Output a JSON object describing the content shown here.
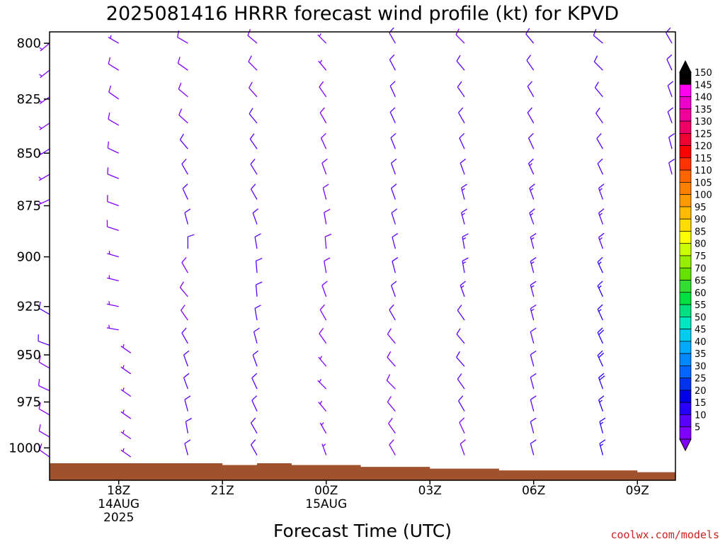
{
  "chart_data": {
    "type": "wind-barb-profile",
    "title": "2025081416 HRRR forecast wind profile (kt) for KPVD",
    "xlabel": "Forecast Time (UTC)",
    "ylabel": "",
    "credit": "coolwx.com/models",
    "x_ticks": [
      {
        "hour": 2,
        "lines": [
          "18Z",
          "14AUG",
          "2025"
        ]
      },
      {
        "hour": 5,
        "lines": [
          "21Z"
        ]
      },
      {
        "hour": 8,
        "lines": [
          "00Z",
          "15AUG"
        ]
      },
      {
        "hour": 11,
        "lines": [
          "03Z"
        ]
      },
      {
        "hour": 14,
        "lines": [
          "06Z"
        ]
      },
      {
        "hour": 17,
        "lines": [
          "09Z"
        ]
      }
    ],
    "y_ticks": [
      800,
      825,
      850,
      875,
      900,
      925,
      950,
      975,
      1000
    ],
    "ylim_hpa": [
      795,
      1018
    ],
    "xlim_hours": [
      0,
      18.1
    ],
    "colorbar": {
      "levels": [
        5,
        10,
        15,
        20,
        25,
        30,
        35,
        40,
        45,
        50,
        55,
        60,
        65,
        70,
        75,
        80,
        85,
        90,
        95,
        100,
        105,
        110,
        115,
        120,
        125,
        130,
        135,
        140,
        145,
        150
      ],
      "colors": [
        "#7f00ff",
        "#5a00ff",
        "#2800ff",
        "#0000e6",
        "#0033ee",
        "#0066ff",
        "#0088ff",
        "#00aaff",
        "#00ccee",
        "#00e6c0",
        "#00e080",
        "#00e040",
        "#33dd33",
        "#66e000",
        "#99ee00",
        "#ccff00",
        "#ffff00",
        "#ffdd00",
        "#ffbb00",
        "#ff9900",
        "#ff8000",
        "#ff6600",
        "#ff3300",
        "#ff0000",
        "#ee0033",
        "#ee0066",
        "#ee0099",
        "#ee00cc",
        "#ff00ee",
        "#000000"
      ]
    },
    "surface_pressure_hpa": [
      1008.5,
      1008.5,
      1008.5,
      1008.5,
      1008.5,
      1009.5,
      1008.5,
      1009.5,
      1009.5,
      1010.5,
      1010.5,
      1011.5,
      1011.5,
      1012.5,
      1012.5,
      1012.5,
      1012.5,
      1013.5,
      1013.5
    ],
    "series": [
      {
        "hour": 0,
        "pressures": [
          800,
          812,
          824,
          836,
          848,
          860,
          872,
          929,
          945,
          957,
          969,
          982,
          994,
          1005
        ],
        "dir": [
          230,
          232,
          235,
          236,
          238,
          240,
          245,
          300,
          290,
          300,
          295,
          300,
          300,
          305
        ],
        "spd": [
          6,
          6,
          6,
          6,
          6,
          6,
          6,
          12,
          10,
          8,
          8,
          8,
          8,
          8
        ]
      },
      {
        "hour": 2,
        "pressures": [
          800,
          812,
          825,
          837,
          850,
          862,
          875,
          887,
          900,
          912,
          925,
          937
        ],
        "dir": [
          300,
          302,
          305,
          300,
          295,
          292,
          290,
          288,
          286,
          284,
          282,
          280
        ],
        "spd": [
          7,
          8,
          9,
          9,
          9,
          8,
          8,
          8,
          7,
          7,
          6,
          6
        ]
      },
      {
        "hour": 2.35,
        "pressures": [
          949,
          960,
          972,
          984,
          995,
          1005
        ],
        "dir": [
          305,
          305,
          305,
          305,
          305,
          305
        ],
        "spd": [
          7,
          7,
          7,
          7,
          7,
          7
        ]
      },
      {
        "hour": 4,
        "pressures": [
          800,
          812,
          824,
          836,
          848,
          860,
          872,
          884,
          896,
          908,
          920,
          932,
          944,
          956,
          968,
          980,
          992,
          1004
        ],
        "dir": [
          300,
          305,
          310,
          312,
          320,
          330,
          335,
          345,
          360,
          330,
          320,
          325,
          330,
          340,
          340,
          345,
          350,
          345
        ],
        "spd": [
          8,
          8,
          9,
          9,
          10,
          10,
          11,
          11,
          10,
          9,
          9,
          9,
          10,
          10,
          10,
          10,
          10,
          10
        ]
      },
      {
        "hour": 6,
        "pressures": [
          800,
          812,
          824,
          836,
          848,
          860,
          872,
          884,
          896,
          908,
          920,
          932,
          944,
          956,
          968,
          980,
          992,
          1004
        ],
        "dir": [
          310,
          315,
          318,
          320,
          325,
          328,
          330,
          340,
          350,
          355,
          355,
          350,
          345,
          340,
          335,
          335,
          330,
          330
        ],
        "spd": [
          8,
          9,
          9,
          10,
          10,
          10,
          10,
          11,
          12,
          12,
          12,
          11,
          11,
          11,
          11,
          10,
          10,
          10
        ]
      },
      {
        "hour": 8,
        "pressures": [
          800,
          812,
          824,
          836,
          848,
          860,
          872,
          884,
          896,
          908,
          920,
          932,
          944,
          956,
          968,
          980,
          992,
          1004
        ],
        "dir": [
          315,
          320,
          325,
          330,
          335,
          340,
          345,
          350,
          355,
          350,
          340,
          330,
          325,
          320,
          315,
          320,
          330,
          340
        ],
        "spd": [
          7,
          7,
          8,
          8,
          8,
          8,
          9,
          9,
          9,
          9,
          9,
          8,
          8,
          7,
          7,
          7,
          7,
          6
        ]
      },
      {
        "hour": 10,
        "pressures": [
          800,
          812,
          824,
          836,
          848,
          860,
          872,
          884,
          896,
          908,
          920,
          932,
          944,
          956,
          968,
          980,
          992,
          1004
        ],
        "dir": [
          330,
          332,
          335,
          335,
          338,
          340,
          340,
          342,
          345,
          345,
          340,
          330,
          320,
          318,
          315,
          320,
          325,
          330
        ],
        "spd": [
          10,
          10,
          11,
          11,
          11,
          11,
          11,
          11,
          11,
          11,
          11,
          10,
          9,
          9,
          9,
          9,
          8,
          8
        ]
      },
      {
        "hour": 12,
        "pressures": [
          800,
          812,
          824,
          836,
          848,
          860,
          872,
          884,
          896,
          908,
          920,
          932,
          944,
          956,
          968,
          980,
          992,
          1004
        ],
        "dir": [
          315,
          320,
          325,
          330,
          335,
          340,
          345,
          345,
          350,
          350,
          340,
          325,
          320,
          318,
          325,
          330,
          335,
          340
        ],
        "spd": [
          9,
          10,
          10,
          10,
          11,
          12,
          13,
          13,
          14,
          14,
          14,
          12,
          11,
          10,
          10,
          10,
          9,
          9
        ]
      },
      {
        "hour": 14,
        "pressures": [
          800,
          812,
          824,
          836,
          848,
          860,
          872,
          884,
          896,
          908,
          920,
          932,
          944,
          956,
          968,
          980,
          992,
          1004
        ],
        "dir": [
          320,
          325,
          330,
          330,
          335,
          335,
          340,
          340,
          345,
          345,
          345,
          345,
          345,
          345,
          345,
          345,
          345,
          345
        ],
        "spd": [
          10,
          10,
          11,
          11,
          12,
          13,
          13,
          13,
          14,
          14,
          13,
          13,
          12,
          12,
          12,
          11,
          11,
          11
        ]
      },
      {
        "hour": 16,
        "pressures": [
          800,
          812,
          824,
          836,
          848,
          860,
          872,
          884,
          896,
          908,
          920,
          932,
          944,
          956,
          968,
          980,
          992,
          1004
        ],
        "dir": [
          310,
          315,
          320,
          325,
          330,
          335,
          340,
          340,
          340,
          335,
          335,
          335,
          335,
          335,
          340,
          340,
          345,
          345
        ],
        "spd": [
          10,
          10,
          11,
          11,
          12,
          12,
          13,
          14,
          14,
          15,
          16,
          17,
          18,
          18,
          18,
          17,
          16,
          15
        ]
      },
      {
        "hour": 18,
        "pressures": [
          800,
          812,
          824,
          836,
          848,
          860
        ],
        "dir": [
          330,
          335,
          340,
          340,
          345,
          345
        ],
        "spd": [
          10,
          10,
          11,
          11,
          11,
          11
        ]
      }
    ]
  }
}
